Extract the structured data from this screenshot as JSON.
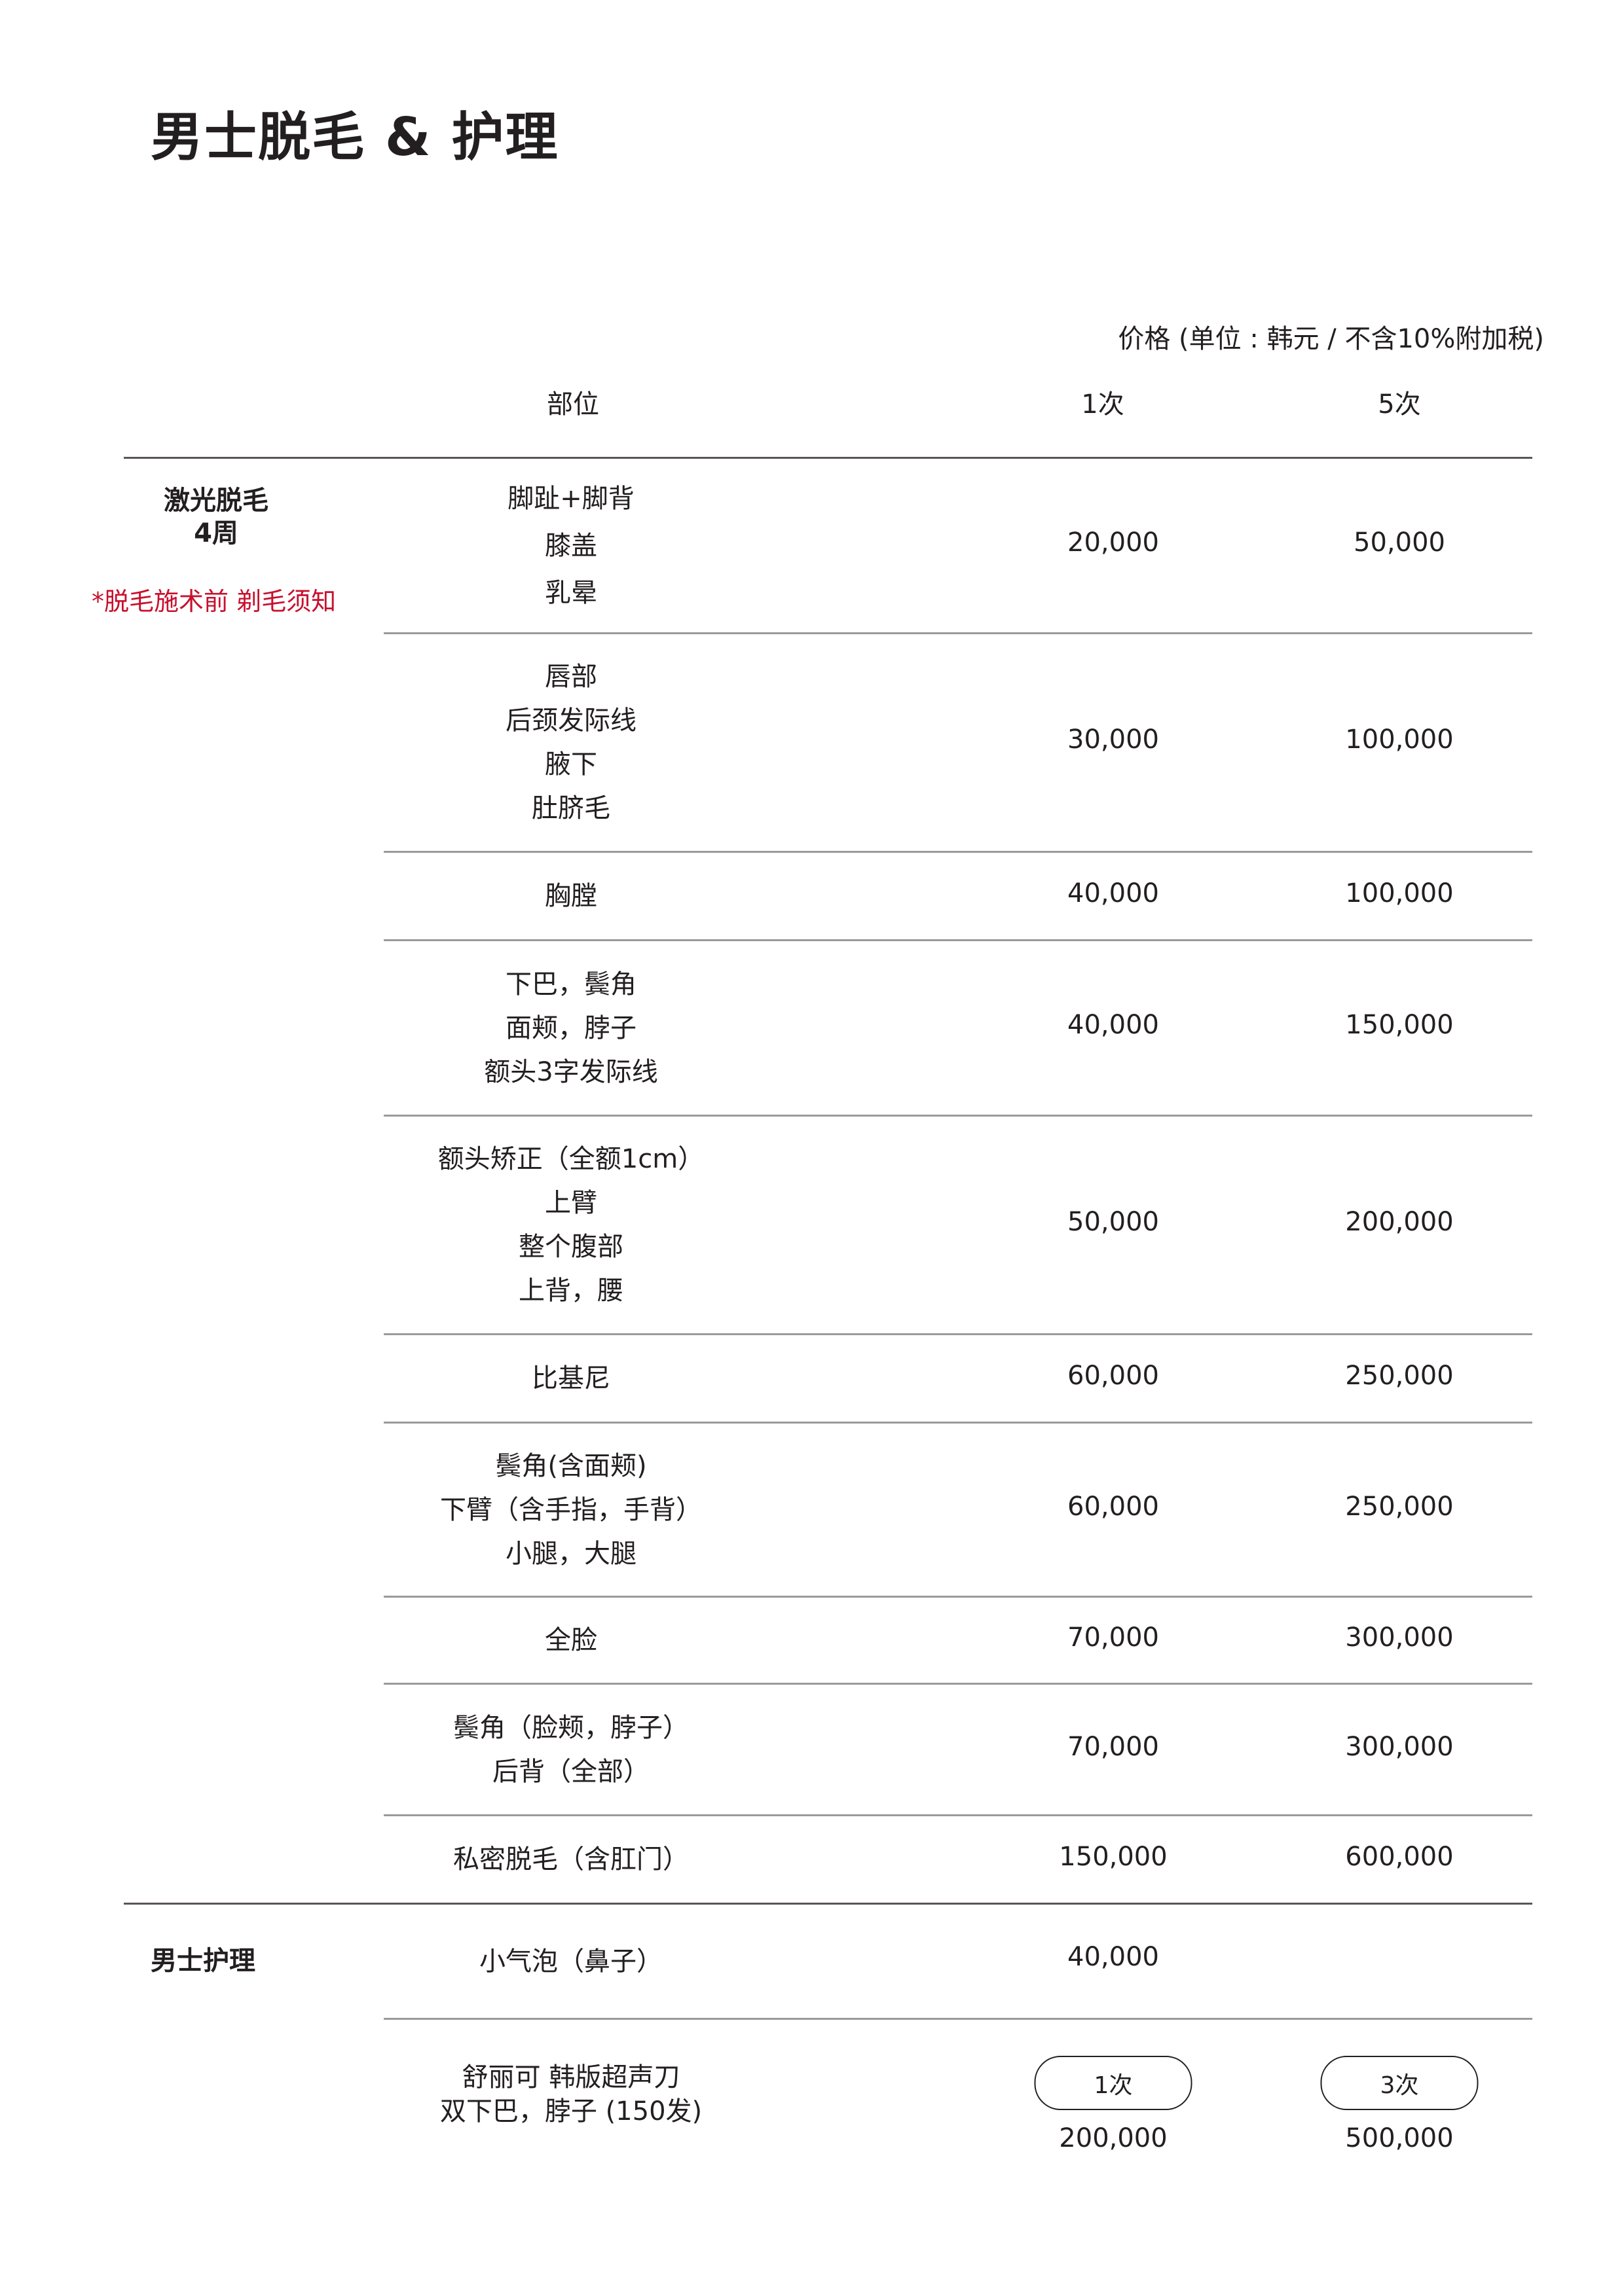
{
  "title": "男士脱毛 & 护理",
  "price_note": "价格 (单位 : 韩元 / 不含10%附加税)",
  "headers": {
    "part": "部位",
    "once": "1次",
    "five": "5次"
  },
  "laser": {
    "label": "激光脱毛",
    "cycle": "4周",
    "notice": "*脱毛施术前 剃毛须知",
    "notice_color": "#c8102e",
    "rows": [
      {
        "parts": [
          "脚趾+脚背",
          "膝盖",
          "乳晕"
        ],
        "once": "20,000",
        "five": "50,000"
      },
      {
        "parts": [
          "唇部",
          "后颈发际线",
          "腋下",
          "肚脐毛"
        ],
        "once": "30,000",
        "five": "100,000"
      },
      {
        "parts": [
          "胸膛"
        ],
        "once": "40,000",
        "five": "100,000"
      },
      {
        "parts": [
          "下巴，鬓角",
          "面颊，脖子",
          "额头3字发际线"
        ],
        "once": "40,000",
        "five": "150,000"
      },
      {
        "parts": [
          "额头矫正（全额1cm）",
          "上臂",
          "整个腹部",
          "上背，腰"
        ],
        "once": "50,000",
        "five": "200,000"
      },
      {
        "parts": [
          "比基尼"
        ],
        "once": "60,000",
        "five": "250,000"
      },
      {
        "parts": [
          "鬓角(含面颊)",
          "下臂（含手指，手背）",
          "小腿，大腿"
        ],
        "once": "60,000",
        "five": "250,000"
      },
      {
        "parts": [
          "全脸"
        ],
        "once": "70,000",
        "five": "300,000"
      },
      {
        "parts": [
          "鬓角（脸颊，脖子）",
          "后背（全部）"
        ],
        "once": "70,000",
        "five": "300,000"
      },
      {
        "parts": [
          "私密脱毛（含肛门）"
        ],
        "once": "150,000",
        "five": "600,000"
      }
    ]
  },
  "care": {
    "label": "男士护理",
    "rows": [
      {
        "parts": [
          "小气泡（鼻子）"
        ],
        "once": "40,000"
      },
      {
        "parts": [
          "舒丽可 韩版超声刀",
          "双下巴，脖子 (150发)"
        ],
        "option1": "1次",
        "option2": "3次",
        "price1": "200,000",
        "price2": "500,000"
      }
    ]
  }
}
